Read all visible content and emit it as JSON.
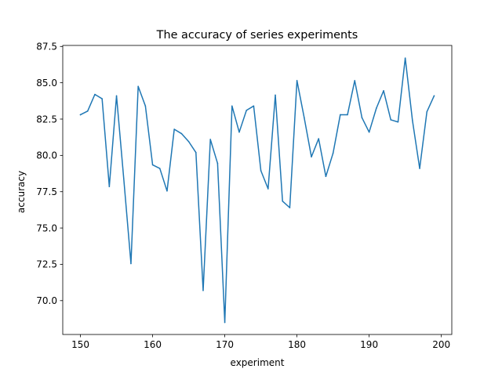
{
  "chart_data": {
    "type": "line",
    "title": "The accuracy of series experiments",
    "xlabel": "experiment",
    "ylabel": "accuracy",
    "xlim": [
      147.55,
      201.45
    ],
    "ylim": [
      67.67,
      87.57
    ],
    "x_ticks": [
      150,
      160,
      170,
      180,
      190,
      200
    ],
    "x_tick_labels": [
      "150",
      "160",
      "170",
      "180",
      "190",
      "200"
    ],
    "y_ticks": [
      70.0,
      72.5,
      75.0,
      77.5,
      80.0,
      82.5,
      85.0,
      87.5
    ],
    "y_tick_labels": [
      "70.0",
      "72.5",
      "75.0",
      "77.5",
      "80.0",
      "82.5",
      "85.0",
      "87.5"
    ],
    "grid": false,
    "line_color": "#1f77b4",
    "series": [
      {
        "x": [
          150,
          151,
          152,
          153,
          154,
          155,
          156,
          157,
          158,
          159,
          160,
          161,
          162,
          163,
          164,
          165,
          166,
          167,
          168,
          169,
          170,
          171,
          172,
          173,
          174,
          175,
          176,
          177,
          178,
          179,
          180,
          181,
          182,
          183,
          184,
          185,
          186,
          187,
          188,
          189,
          190,
          191,
          192,
          193,
          194,
          195,
          196,
          197,
          198,
          199
        ],
        "values": [
          82.8,
          83.05,
          84.2,
          83.9,
          77.85,
          84.1,
          78.4,
          72.55,
          84.75,
          83.4,
          79.35,
          79.1,
          77.55,
          81.8,
          81.5,
          80.95,
          80.2,
          70.7,
          81.1,
          79.45,
          68.5,
          83.4,
          81.6,
          83.1,
          83.4,
          78.95,
          77.7,
          84.15,
          76.85,
          76.4,
          85.15,
          82.6,
          79.9,
          81.15,
          78.55,
          80.15,
          82.8,
          82.8,
          85.15,
          82.6,
          81.6,
          83.25,
          84.45,
          82.45,
          82.3,
          86.7,
          82.4,
          79.1,
          83.0,
          84.1
        ]
      }
    ]
  }
}
